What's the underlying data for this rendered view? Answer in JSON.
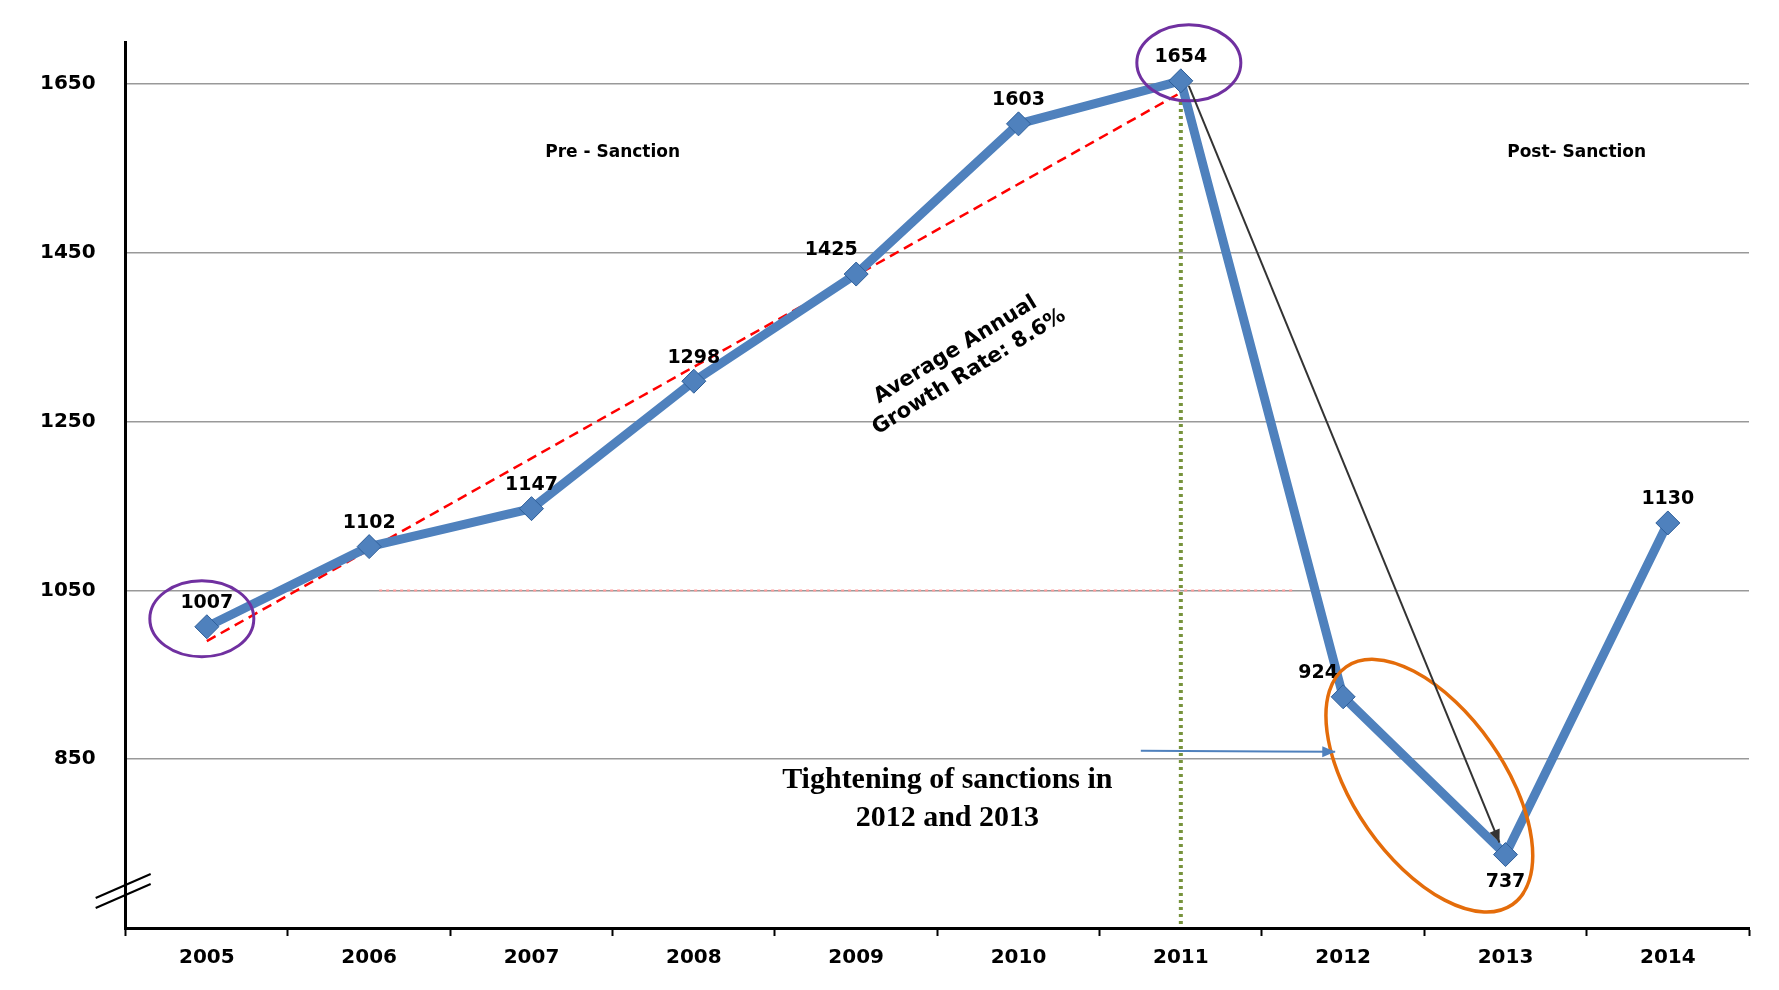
{
  "chart_data": {
    "type": "line",
    "categories": [
      "2005",
      "2006",
      "2007",
      "2008",
      "2009",
      "2010",
      "2011",
      "2012",
      "2013",
      "2014"
    ],
    "series": [
      {
        "color": "#4f81bd",
        "values": [
          1007,
          1102,
          1147,
          1298,
          1425,
          1603,
          1654,
          924,
          737,
          1130
        ],
        "value_labels": [
          "1007",
          "1102",
          "1147",
          "1298",
          "1425",
          "1603",
          "1654",
          "924",
          "737",
          "1130"
        ]
      },
      {
        "type": "line",
        "values": [
          990,
          null,
          null,
          null,
          null,
          null,
          1640,
          null,
          null,
          null
        ],
        "color": "#ff0000",
        "line_style": "dashed",
        "marker": "none"
      }
    ],
    "ylim": [
      650,
      1700
    ],
    "yticks": [
      850,
      1050,
      1250,
      1450,
      1650
    ],
    "grid": "y",
    "legend": false,
    "marker": "diamond",
    "ref_lines": [
      {
        "axis": "x",
        "value": "2011",
        "color": "#77933c",
        "line_style": "dotted"
      },
      {
        "axis": "y",
        "value": 1050,
        "color": "#ff9999",
        "line_style": "dotted"
      }
    ],
    "annotations": [
      "Pre - Sanction",
      "Post- Sanction",
      "Average Annual Growth Rate: 8.6%",
      "Tightening of sanctions in 2012 and 2013"
    ]
  }
}
